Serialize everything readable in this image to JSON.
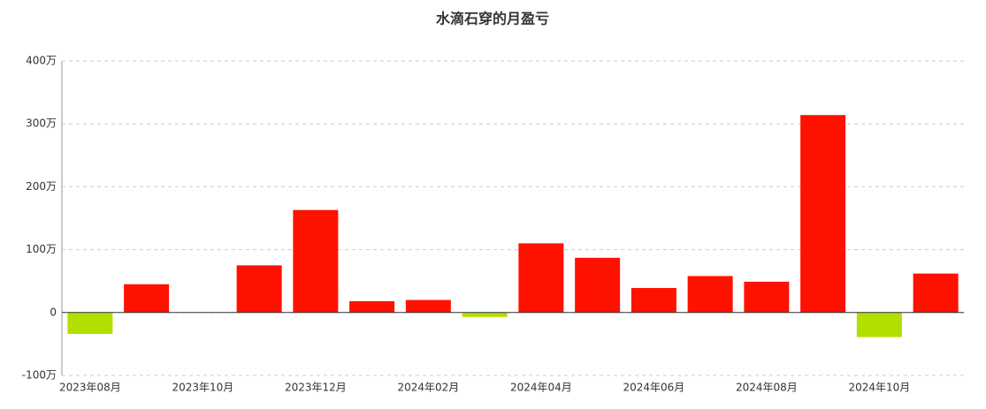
{
  "chart_data": {
    "type": "bar",
    "title": "水滴石穿的月盈亏",
    "categories": [
      "2023年08月",
      null,
      "2023年10月",
      null,
      "2023年12月",
      null,
      "2024年02月",
      null,
      "2024年04月",
      null,
      "2024年06月",
      null,
      "2024年08月",
      null,
      "2024年10月",
      null
    ],
    "values": [
      -34,
      45,
      0,
      75,
      163,
      18,
      20,
      -7,
      110,
      87,
      39,
      58,
      49,
      314,
      -39,
      62
    ],
    "positive_color": "#ff1100",
    "negative_color": "#b2df00",
    "ylim": [
      -100,
      400
    ],
    "yticks": [
      {
        "value": -100,
        "label": "-100万"
      },
      0,
      {
        "value": 100,
        "label": "100万"
      },
      {
        "value": 200,
        "label": "200万"
      },
      {
        "value": 300,
        "label": "300万"
      },
      {
        "value": 400,
        "label": "400万"
      }
    ],
    "grid": true
  }
}
